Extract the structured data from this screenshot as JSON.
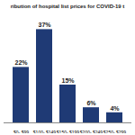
{
  "chart_data": {
    "type": "bar",
    "title": "ribution of hospital list prices for COVID-19 t",
    "categories": [
      "$0- $99",
      "$100- $149",
      "$150- $199",
      "$200- $249",
      "$250- $299"
    ],
    "values": [
      22,
      37,
      15,
      6,
      4
    ],
    "value_labels": [
      "22%",
      "37%",
      "15%",
      "6%",
      "4%"
    ],
    "color": "#1f3a75",
    "ylim": [
      0,
      40
    ],
    "data_labels": true,
    "tick_labels": "x",
    "grid": false
  }
}
